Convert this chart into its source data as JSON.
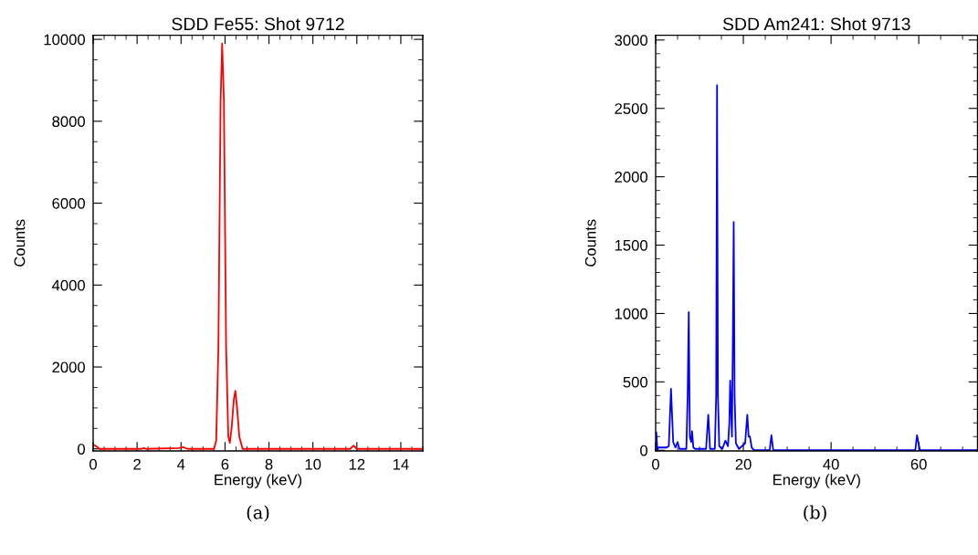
{
  "chart_data": [
    {
      "type": "line",
      "title": "SDD Fe55: Shot 9712",
      "xlabel": "Energy (keV)",
      "ylabel": "Counts",
      "annotations": [
        "(a)"
      ],
      "xlim": [
        0,
        15
      ],
      "xticks": [
        0,
        2,
        4,
        6,
        8,
        10,
        12,
        14
      ],
      "ylim": [
        -50,
        10100
      ],
      "yticks": [
        0,
        2000,
        4000,
        6000,
        8000,
        10000
      ],
      "series": [
        {
          "color": "#ff0000",
          "x": [
            0,
            0.1,
            0.3,
            2.2,
            2.3,
            2.4,
            3.9,
            4.1,
            4.3,
            5.5,
            5.6,
            5.7,
            5.8,
            5.87,
            5.95,
            6.05,
            6.15,
            6.22,
            6.3,
            6.4,
            6.47,
            6.55,
            6.65,
            6.8,
            11.7,
            11.85,
            12.0,
            15
          ],
          "values": [
            100,
            80,
            0,
            0,
            20,
            0,
            20,
            40,
            0,
            0,
            200,
            2500,
            8500,
            9900,
            8500,
            2500,
            300,
            150,
            500,
            1200,
            1420,
            1000,
            300,
            0,
            0,
            80,
            0,
            0
          ]
        }
      ]
    },
    {
      "type": "line",
      "title": "SDD Am241: Shot 9713",
      "xlabel": "Energy (keV)",
      "ylabel": "Counts",
      "annotations": [
        "(b)"
      ],
      "xlim": [
        0,
        73.4
      ],
      "xticks": [
        0,
        20,
        40,
        60
      ],
      "ylim": [
        -5,
        3035
      ],
      "yticks": [
        0,
        500,
        1000,
        1500,
        2000,
        2500,
        3000
      ],
      "series": [
        {
          "color": "#0000ff",
          "x": [
            0.15,
            0.4,
            0.6,
            0.8,
            1.5,
            2.5,
            3.0,
            3.5,
            4.0,
            4.5,
            5.0,
            5.4,
            6.0,
            7.0,
            7.3,
            7.55,
            7.8,
            8.1,
            8.3,
            8.6,
            9.0,
            11.5,
            12.0,
            12.4,
            13.5,
            13.8,
            14.0,
            14.2,
            14.5,
            15.2,
            15.9,
            16.5,
            16.8,
            17.0,
            17.2,
            17.4,
            17.6,
            17.8,
            18.0,
            18.3,
            19.0,
            20.4,
            20.9,
            21.2,
            21.5,
            21.9,
            22.5,
            26.0,
            26.4,
            26.8,
            59.2,
            59.6,
            60.0,
            60.3,
            73.4
          ],
          "values": [
            130,
            0,
            20,
            20,
            20,
            20,
            30,
            450,
            60,
            20,
            60,
            10,
            10,
            10,
            400,
            1010,
            100,
            60,
            140,
            20,
            10,
            10,
            260,
            10,
            10,
            400,
            2670,
            400,
            30,
            10,
            70,
            30,
            200,
            510,
            300,
            100,
            800,
            1670,
            400,
            50,
            10,
            50,
            260,
            100,
            100,
            20,
            0,
            0,
            110,
            0,
            0,
            110,
            40,
            0,
            0
          ]
        }
      ]
    }
  ]
}
